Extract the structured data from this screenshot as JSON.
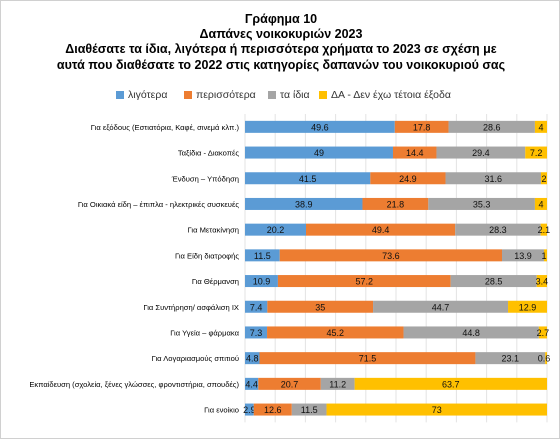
{
  "chart_data": {
    "type": "bar",
    "orientation": "horizontal",
    "stacked": true,
    "title": "Γράφημα 10",
    "subtitle": "Δαπάνες νοικοκυριών 2023",
    "question_line1": "Διαθέσατε τα ίδια, λιγότερα ή περισσότερα χρήματα το 2023 σε σχέση με",
    "question_line2": "αυτά που διαθέσατε το 2022 στις κατηγορίες δαπανών του νοικοκυριού σας",
    "legend_position": "top",
    "grid": true,
    "xlim": [
      0,
      100
    ],
    "categories": [
      "Για εξόδους (Εστιατόρια, Καφέ, σινεμά κλπ.)",
      "Ταξίδια - Διακοπές",
      "Ένδυση – Υπόδηση",
      "Για Οικιακά είδη – έπιπλα - ηλεκτρικές συσκευές",
      "Για Μετακίνηση",
      "Για Είδη διατροφής",
      "Για Θέρμανση",
      "Για Συντήρηση/ ασφάλιση IX",
      "Για Υγεία – φάρμακα",
      "Για Λογαριασμούς σπιτιού",
      "Εκπαίδευση (σχολεία, ξένες γλώσσες, φροντιστήρια, σπουδές)",
      "Για ενοίκιο"
    ],
    "series": [
      {
        "name": "λιγότερα",
        "color": "#5b9bd5",
        "values": [
          49.6,
          49,
          41.5,
          38.9,
          20.2,
          11.5,
          10.9,
          7.4,
          7.3,
          4.8,
          4.4,
          2.9
        ]
      },
      {
        "name": "περισσότερα",
        "color": "#ed7d31",
        "values": [
          17.8,
          14.4,
          24.9,
          21.8,
          49.4,
          73.6,
          57.2,
          35,
          45.2,
          71.5,
          20.7,
          12.6
        ]
      },
      {
        "name": "τα ίδια",
        "color": "#a5a5a5",
        "values": [
          28.6,
          29.4,
          31.6,
          35.3,
          28.3,
          13.9,
          28.5,
          44.7,
          44.8,
          23.1,
          11.2,
          11.5
        ]
      },
      {
        "name": "ΔΑ - Δεν έχω τέτοια έξοδα",
        "color": "#ffc000",
        "values": [
          4,
          7.2,
          2,
          4,
          2.1,
          1,
          3.4,
          12.9,
          2.7,
          0.6,
          63.7,
          73
        ]
      }
    ]
  }
}
